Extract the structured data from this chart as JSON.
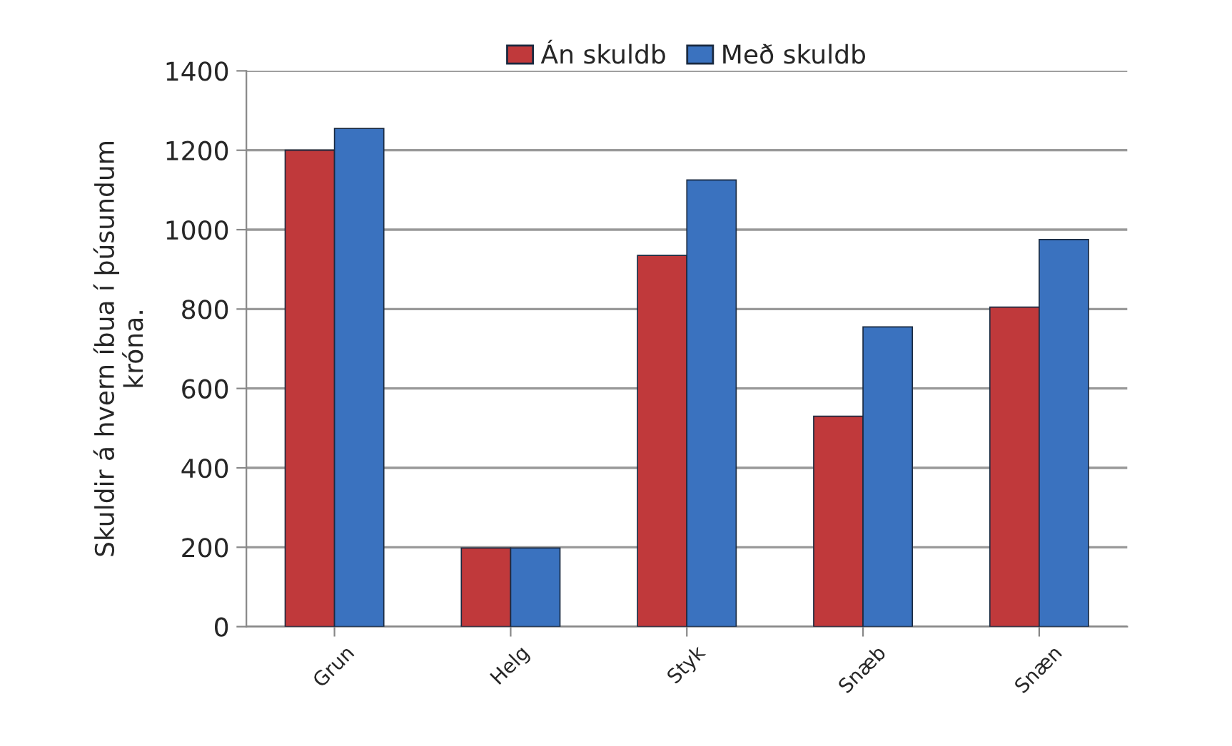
{
  "chart_data": {
    "type": "bar",
    "ylabel": "Skuldir á hvern íbua í þúsundum\nkróna.",
    "categories": [
      "Grun",
      "Helg",
      "Styk",
      "Snæb",
      "Snæn"
    ],
    "series": [
      {
        "name": "Án skuldb",
        "color": "#c0393b",
        "values": [
          1200,
          198,
          935,
          530,
          805
        ]
      },
      {
        "name": "Með skuldb",
        "color": "#3a72bf",
        "values": [
          1255,
          198,
          1125,
          755,
          975
        ]
      }
    ],
    "ylim": [
      0,
      1400
    ],
    "yticks": [
      0,
      200,
      400,
      600,
      800,
      1000,
      1200,
      1400
    ],
    "grid": "y",
    "legend": "top"
  }
}
